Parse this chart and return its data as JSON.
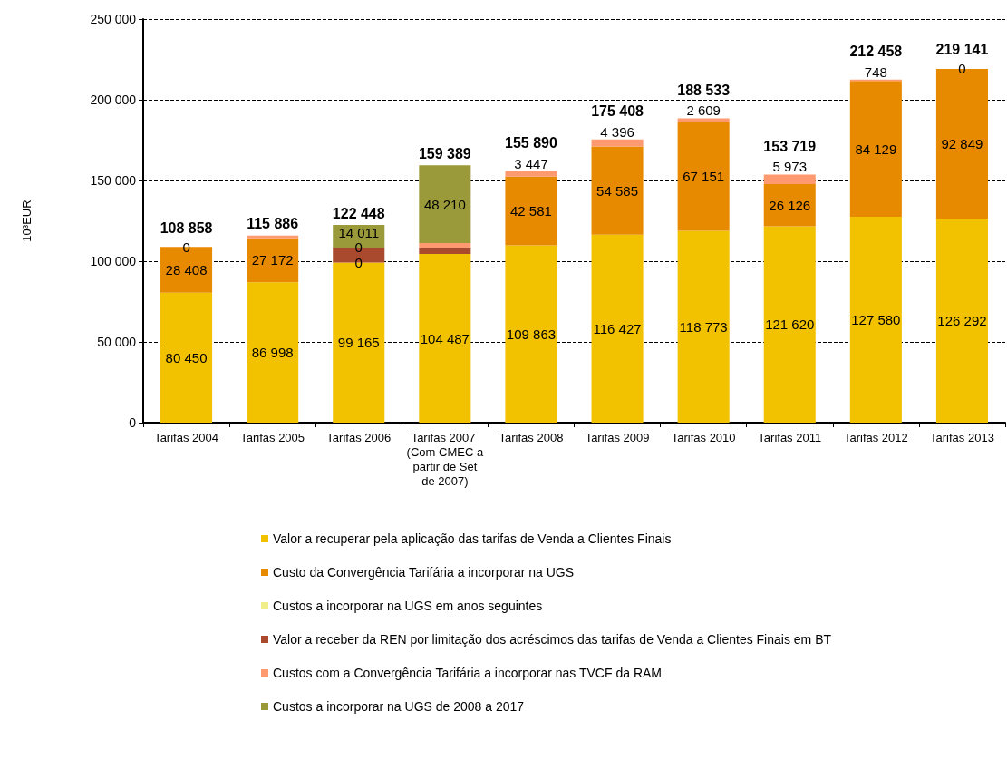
{
  "chart_data": {
    "type": "bar",
    "stacked": true,
    "ylabel": "10³EUR",
    "categories": [
      "Tarifas 2004",
      "Tarifas 2005",
      "Tarifas 2006",
      "Tarifas 2007 (Com CMEC a partir de Set de 2007)",
      "Tarifas 2008",
      "Tarifas 2009",
      "Tarifas 2010",
      "Tarifas 2011",
      "Tarifas 2012",
      "Tarifas 2013"
    ],
    "series": [
      {
        "name": "Valor a recuperar pela aplicação das tarifas de Venda a Clientes Finais",
        "color": "#f2c200",
        "values": [
          80450,
          86998,
          99165,
          104487,
          109863,
          116427,
          118773,
          121620,
          127580,
          126292
        ],
        "value_labels": [
          "80 450",
          "86 998",
          "99 165",
          "104 487",
          "109 863",
          "116 427",
          "118 773",
          "121 620",
          "127 580",
          "126 292"
        ]
      },
      {
        "name": "Custo da Convergência Tarifária a incorporar na UGS",
        "color": "#e88a00",
        "values": [
          28408,
          27172,
          0,
          null,
          42581,
          54585,
          67151,
          26126,
          84129,
          92849
        ],
        "value_labels": [
          "28 408",
          "27 172",
          "0",
          null,
          "42 581",
          "54 585",
          "67 151",
          "26 126",
          "84 129",
          "92 849"
        ]
      },
      {
        "name": "Custos a incorporar na UGS em anos seguintes",
        "color": "#f0ee8a",
        "values": [
          0,
          null,
          null,
          null,
          null,
          null,
          null,
          null,
          null,
          null
        ],
        "value_labels": [
          "0",
          null,
          null,
          null,
          null,
          null,
          null,
          null,
          null,
          null
        ]
      },
      {
        "name": "Valor a receber da REN por limitação dos acréscimos das tarifas de Venda a Clientes Finais em BT",
        "color": "#a9492e",
        "values": [
          null,
          null,
          9272,
          3700,
          null,
          null,
          null,
          null,
          null,
          null
        ],
        "value_labels": [
          null,
          null,
          null,
          null,
          null,
          null,
          null,
          null,
          null,
          null
        ]
      },
      {
        "name": "Custos com a Convergência Tarifária a incorporar nas TVCF da RAM",
        "color": "#ff9a70",
        "values": [
          null,
          1716,
          0,
          2992,
          3447,
          4396,
          2609,
          5973,
          748,
          0
        ],
        "value_labels": [
          null,
          null,
          "0",
          null,
          "3 447",
          "4 396",
          "2 609",
          "5 973",
          "748",
          "0"
        ]
      },
      {
        "name": "Custos a incorporar na UGS de 2008 a 2017",
        "color": "#9a9a3a",
        "values": [
          null,
          null,
          14011,
          48210,
          null,
          null,
          null,
          null,
          null,
          null
        ],
        "value_labels": [
          null,
          null,
          "14 011",
          "48 210",
          null,
          null,
          null,
          null,
          null,
          null
        ]
      }
    ],
    "totals": [
      "108 858",
      "115 886",
      "122 448",
      "159 389",
      "155 890",
      "175 408",
      "188 533",
      "153 719",
      "212 458",
      "219 141"
    ],
    "ylim": [
      0,
      250000
    ],
    "yticks": [
      0,
      {
        "value": 50000,
        "label": "50 000"
      },
      {
        "value": 100000,
        "label": "100 000"
      },
      {
        "value": 150000,
        "label": "150 000"
      },
      {
        "value": 200000,
        "label": "200 000"
      },
      {
        "value": 250000,
        "label": "250 000"
      }
    ],
    "grid": "y",
    "legend": "bottom"
  }
}
